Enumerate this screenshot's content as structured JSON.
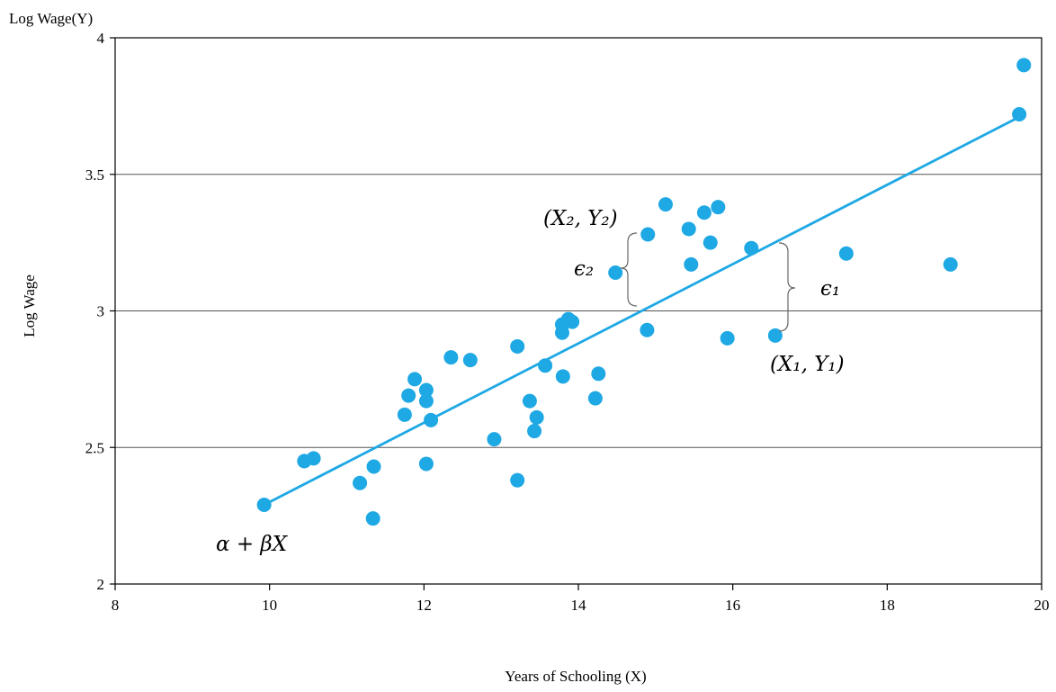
{
  "chart_data": {
    "type": "scatter",
    "title": "",
    "ylabel_top": "Log Wage(Y)",
    "ylabel": "Log Wage",
    "xlabel": "Years of Schooling  (X)",
    "xlim": [
      8,
      20
    ],
    "ylim": [
      2,
      4
    ],
    "xticks": [
      "8",
      "10",
      "12",
      "14",
      "16",
      "18",
      "20"
    ],
    "yticks": [
      "2",
      "2.5",
      "3",
      "3.5",
      "4"
    ],
    "grid": "horizontal",
    "colors": {
      "point": "#1EA8E4",
      "line": "#1EA8E4",
      "grid": "#555555"
    },
    "points": [
      {
        "x": 9.93,
        "y": 2.29
      },
      {
        "x": 10.45,
        "y": 2.45
      },
      {
        "x": 10.57,
        "y": 2.46
      },
      {
        "x": 11.17,
        "y": 2.37
      },
      {
        "x": 11.34,
        "y": 2.24
      },
      {
        "x": 11.35,
        "y": 2.43
      },
      {
        "x": 11.75,
        "y": 2.62
      },
      {
        "x": 11.8,
        "y": 2.69
      },
      {
        "x": 11.88,
        "y": 2.75
      },
      {
        "x": 12.03,
        "y": 2.71
      },
      {
        "x": 12.03,
        "y": 2.67
      },
      {
        "x": 12.03,
        "y": 2.44
      },
      {
        "x": 12.09,
        "y": 2.6
      },
      {
        "x": 12.35,
        "y": 2.83
      },
      {
        "x": 12.6,
        "y": 2.82
      },
      {
        "x": 12.91,
        "y": 2.53
      },
      {
        "x": 13.21,
        "y": 2.87
      },
      {
        "x": 13.21,
        "y": 2.38
      },
      {
        "x": 13.37,
        "y": 2.67
      },
      {
        "x": 13.43,
        "y": 2.56
      },
      {
        "x": 13.46,
        "y": 2.61
      },
      {
        "x": 13.57,
        "y": 2.8
      },
      {
        "x": 13.79,
        "y": 2.95
      },
      {
        "x": 13.79,
        "y": 2.92
      },
      {
        "x": 13.8,
        "y": 2.76
      },
      {
        "x": 13.87,
        "y": 2.97
      },
      {
        "x": 13.92,
        "y": 2.96
      },
      {
        "x": 14.22,
        "y": 2.68
      },
      {
        "x": 14.26,
        "y": 2.77
      },
      {
        "x": 14.48,
        "y": 3.14
      },
      {
        "x": 14.89,
        "y": 2.93
      },
      {
        "x": 14.9,
        "y": 3.28
      },
      {
        "x": 15.13,
        "y": 3.39
      },
      {
        "x": 15.43,
        "y": 3.3
      },
      {
        "x": 15.46,
        "y": 3.17
      },
      {
        "x": 15.63,
        "y": 3.36
      },
      {
        "x": 15.71,
        "y": 3.25
      },
      {
        "x": 15.81,
        "y": 3.38
      },
      {
        "x": 15.93,
        "y": 2.9
      },
      {
        "x": 16.24,
        "y": 3.23
      },
      {
        "x": 16.55,
        "y": 2.91
      },
      {
        "x": 17.47,
        "y": 3.21
      },
      {
        "x": 18.82,
        "y": 3.17
      },
      {
        "x": 19.71,
        "y": 3.72
      },
      {
        "x": 19.77,
        "y": 3.9
      }
    ],
    "fit_line": {
      "x": [
        9.93,
        19.71
      ],
      "y": [
        2.29,
        3.71
      ]
    },
    "annotations": {
      "line_label": "α + βX",
      "epsilon_1": "ϵ₁",
      "epsilon_2": "ϵ₂",
      "point_1": "(X₁, Y₁)",
      "point_2": "(X₂, Y₂)"
    }
  }
}
